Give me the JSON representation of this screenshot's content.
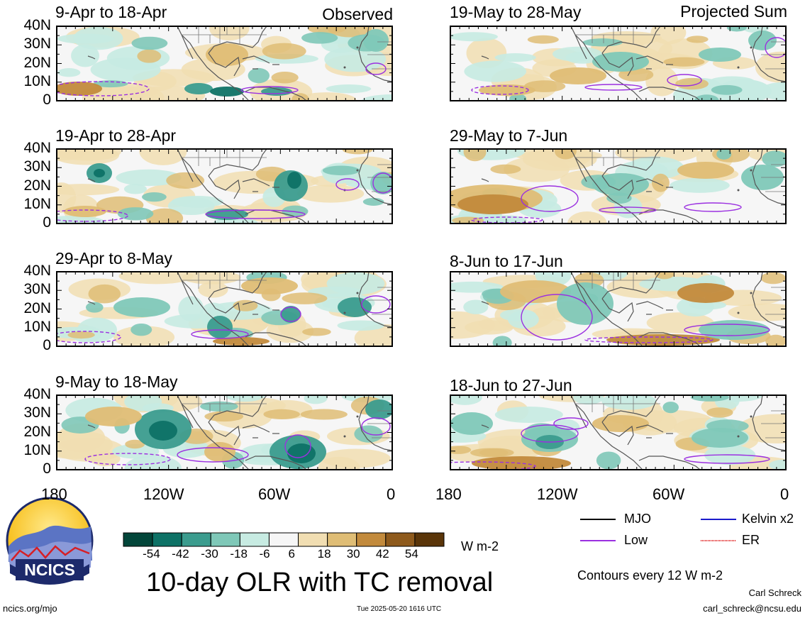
{
  "observed_label": "Observed",
  "projected_label": "Projected Sum",
  "panels": [
    {
      "title": "9-Apr to 18-Apr",
      "column": "observed"
    },
    {
      "title": "19-Apr to 28-Apr",
      "column": "observed"
    },
    {
      "title": "29-Apr to 8-May",
      "column": "observed"
    },
    {
      "title": "9-May to 18-May",
      "column": "observed"
    },
    {
      "title": "19-May to 28-May",
      "column": "projected"
    },
    {
      "title": "29-May to 7-Jun",
      "column": "projected"
    },
    {
      "title": "8-Jun to 17-Jun",
      "column": "projected"
    },
    {
      "title": "18-Jun to 27-Jun",
      "column": "projected"
    }
  ],
  "lat_ticks": [
    "40N",
    "30N",
    "20N",
    "10N",
    "0"
  ],
  "lon_ticks": [
    "180",
    "120W",
    "60W",
    "0"
  ],
  "colorbar": {
    "labels": [
      "-54",
      "-42",
      "-30",
      "-18",
      "-6",
      "6",
      "18",
      "30",
      "42",
      "54"
    ],
    "colors": [
      "#03463a",
      "#0e7266",
      "#3b9c8e",
      "#7fc8b8",
      "#c7ebe2",
      "#f6f6f6",
      "#f1deb2",
      "#dfbd75",
      "#c28a3c",
      "#8e5a1c",
      "#5a3509"
    ],
    "units": "W m-2"
  },
  "legend": {
    "mjo": {
      "label": "MJO",
      "color": "#000000"
    },
    "kelvin": {
      "label": "Kelvin x2",
      "color": "#1a1acc"
    },
    "low": {
      "label": "Low",
      "color": "#9b30e0"
    },
    "er": {
      "label": "ER",
      "color": "#e02020"
    }
  },
  "contours_note": "Contours every 12 W m-2",
  "title": "10-day OLR with TC removal",
  "logo_text": "NCICS",
  "site": "ncics.org/mjo",
  "timestamp": "Tue 2025-05-20 1616 UTC",
  "author": "Carl Schreck",
  "email": "carl_schreck@ncsu.edu"
}
